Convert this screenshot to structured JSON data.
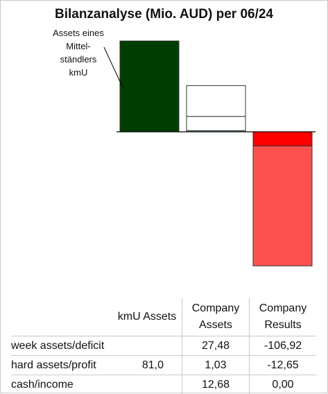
{
  "chart_data": {
    "type": "bar",
    "title": "Bilanzanalyse  (Mio. AUD) per 06/24",
    "annotation": [
      "Assets eines",
      "Mittel-",
      "ständlers",
      "kmU"
    ],
    "categories": [
      "kmU Assets",
      "Company Assets",
      "Company Results"
    ],
    "series": [
      {
        "name": "week assets/deficit",
        "values": [
          null,
          27.48,
          -106.92
        ]
      },
      {
        "name": "hard assets/profit",
        "values": [
          81.0,
          1.03,
          -12.65
        ]
      },
      {
        "name": "cash/income",
        "values": [
          null,
          12.68,
          0.0
        ]
      }
    ],
    "stack_order": {
      "kmU Assets": [
        "hard assets/profit"
      ],
      "Company Assets": [
        "hard assets/profit",
        "cash/income",
        "week assets/deficit"
      ],
      "Company Results": [
        "hard assets/profit",
        "week assets/deficit"
      ]
    },
    "colors": {
      "hard_assets_dark": "#003d00",
      "hard_assets_light": "#82b084",
      "week_assets": "#ffffff",
      "profit_negative": "#ff0000",
      "deficit": "#ff5050",
      "outline": "#333333"
    },
    "ylim": [
      -120,
      82
    ],
    "grid": false,
    "legend": "none"
  },
  "table": {
    "headers": [
      "",
      "kmU Assets",
      "Company\nAssets",
      "Company\nResults"
    ],
    "header_lines": {
      "c1": "kmU Assets",
      "c2a": "Company",
      "c2b": "Assets",
      "c3a": "Company",
      "c3b": "Results"
    },
    "rows": [
      {
        "label": "week assets/deficit",
        "kmu": "",
        "assets": "27,48",
        "results": "-106,92"
      },
      {
        "label": "hard assets/profit",
        "kmu": "81,0",
        "assets": "1,03",
        "results": "-12,65"
      },
      {
        "label": "cash/income",
        "kmu": "",
        "assets": "12,68",
        "results": "0,00"
      }
    ]
  }
}
